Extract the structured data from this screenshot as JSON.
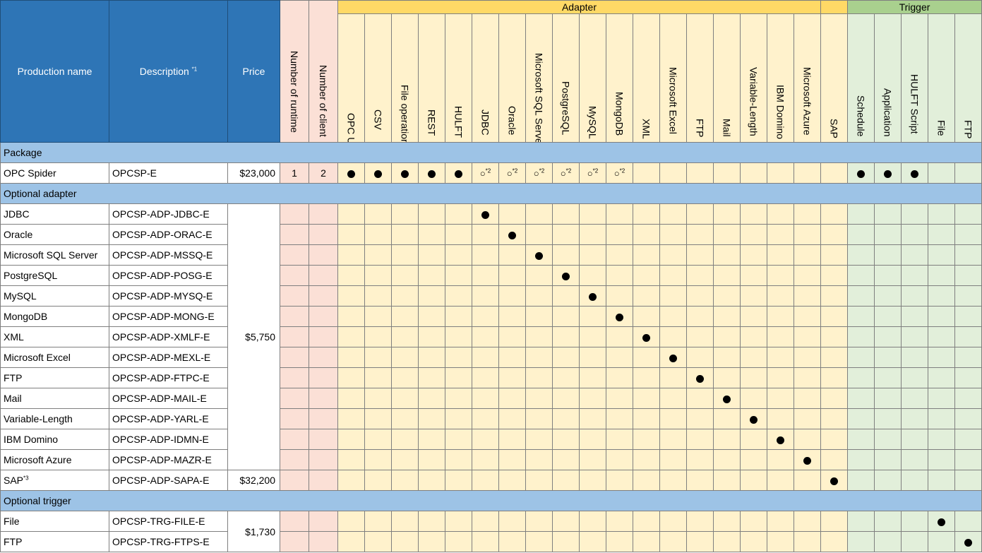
{
  "header": {
    "production_name": "Production name",
    "description": "Description",
    "description_note": "*1",
    "price": "Price",
    "runtime": "Number of runtime",
    "client": "Number of client",
    "adapter_group": "Adapter",
    "trigger_group": "Trigger",
    "adapter_columns": [
      "OPC UA",
      "CSV",
      "File operation",
      "REST",
      "HULFT",
      "JDBC",
      "Oracle",
      "Microsoft SQL Server",
      "PostgreSQL",
      "MySQL",
      "MongoDB",
      "XML",
      "Microsoft Excel",
      "FTP",
      "Mail",
      "Variable-Length",
      "IBM Domino",
      "Microsoft Azure",
      "SAP"
    ],
    "trigger_columns": [
      "Schedule",
      "Application",
      "HULFT Script",
      "File",
      "FTP"
    ]
  },
  "sections": {
    "package": "Package",
    "optional_adapter": "Optional adapter",
    "optional_trigger": "Optional trigger"
  },
  "package_row": {
    "name": "OPC Spider",
    "code": "OPCSP-E",
    "price": "$23,000",
    "runtime": "1",
    "client": "2",
    "circle_glyph": "○",
    "circle_note": "*2"
  },
  "adapter_rows": [
    {
      "name": "JDBC",
      "code": "OPCSP-ADP-JDBC-E"
    },
    {
      "name": "Oracle",
      "code": "OPCSP-ADP-ORAC-E"
    },
    {
      "name": "Microsoft SQL Server",
      "code": "OPCSP-ADP-MSSQ-E"
    },
    {
      "name": "PostgreSQL",
      "code": "OPCSP-ADP-POSG-E"
    },
    {
      "name": "MySQL",
      "code": "OPCSP-ADP-MYSQ-E"
    },
    {
      "name": "MongoDB",
      "code": "OPCSP-ADP-MONG-E"
    },
    {
      "name": "XML",
      "code": "OPCSP-ADP-XMLF-E"
    },
    {
      "name": "Microsoft Excel",
      "code": "OPCSP-ADP-MEXL-E"
    },
    {
      "name": "FTP",
      "code": "OPCSP-ADP-FTPC-E"
    },
    {
      "name": "Mail",
      "code": "OPCSP-ADP-MAIL-E"
    },
    {
      "name": "Variable-Length",
      "code": "OPCSP-ADP-YARL-E"
    },
    {
      "name": "IBM Domino",
      "code": "OPCSP-ADP-IDMN-E"
    },
    {
      "name": "Microsoft Azure",
      "code": "OPCSP-ADP-MAZR-E"
    },
    {
      "name": "SAP",
      "note": "*3",
      "code": "OPCSP-ADP-SAPA-E"
    }
  ],
  "adapter_shared_price": "$5,750",
  "sap_price": "$32,200",
  "trigger_rows": [
    {
      "name": "File",
      "code": "OPCSP-TRG-FILE-E"
    },
    {
      "name": "FTP",
      "code": "OPCSP-TRG-FTPS-E"
    }
  ],
  "trigger_shared_price": "$1,730"
}
